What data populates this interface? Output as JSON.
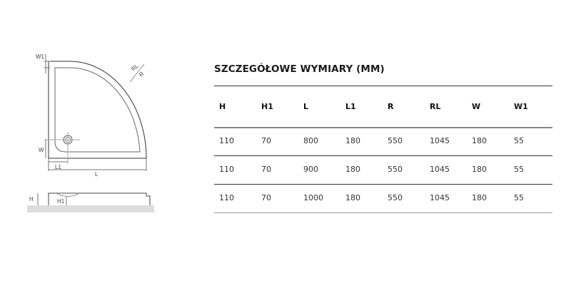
{
  "drawing": {
    "labels": {
      "W1": "W1",
      "RL": "RL",
      "R": "R",
      "W": "W",
      "L1": "L1",
      "L": "L",
      "H": "H",
      "H1": "H1"
    }
  },
  "table": {
    "title": "SZCZEGÓŁOWE WYMIARY (MM)",
    "headers": [
      "H",
      "H1",
      "L",
      "L1",
      "R",
      "RL",
      "W",
      "W1"
    ],
    "rows": [
      [
        "110",
        "70",
        "800",
        "180",
        "550",
        "1045",
        "180",
        "55"
      ],
      [
        "110",
        "70",
        "900",
        "180",
        "550",
        "1045",
        "180",
        "55"
      ],
      [
        "110",
        "70",
        "1000",
        "180",
        "550",
        "1045",
        "180",
        "55"
      ]
    ]
  }
}
